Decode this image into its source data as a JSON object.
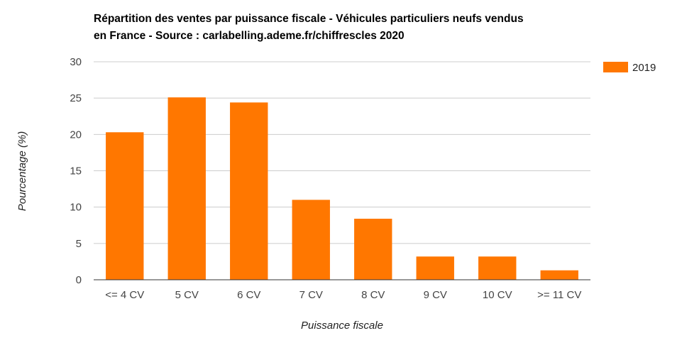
{
  "chart_data": {
    "type": "bar",
    "title_lines": [
      "Répartition des ventes par puissance fiscale - Véhicules particuliers neufs vendus",
      "en France - Source : carlabelling.ademe.fr/chiffrescles 2020"
    ],
    "xlabel": "Puissance fiscale",
    "ylabel": "Pourcentage (%)",
    "categories": [
      "<= 4 CV",
      "5 CV",
      "6 CV",
      "7 CV",
      "8 CV",
      "9 CV",
      "10 CV",
      ">= 11 CV"
    ],
    "series": [
      {
        "name": "2019",
        "color": "#ff7700",
        "values": [
          20.3,
          25.1,
          24.4,
          11.0,
          8.4,
          3.2,
          3.2,
          1.3
        ]
      }
    ],
    "ylim": [
      0,
      30
    ],
    "yticks": [
      0,
      5,
      10,
      15,
      20,
      25,
      30
    ],
    "grid": true,
    "legend_position": "top-right"
  }
}
